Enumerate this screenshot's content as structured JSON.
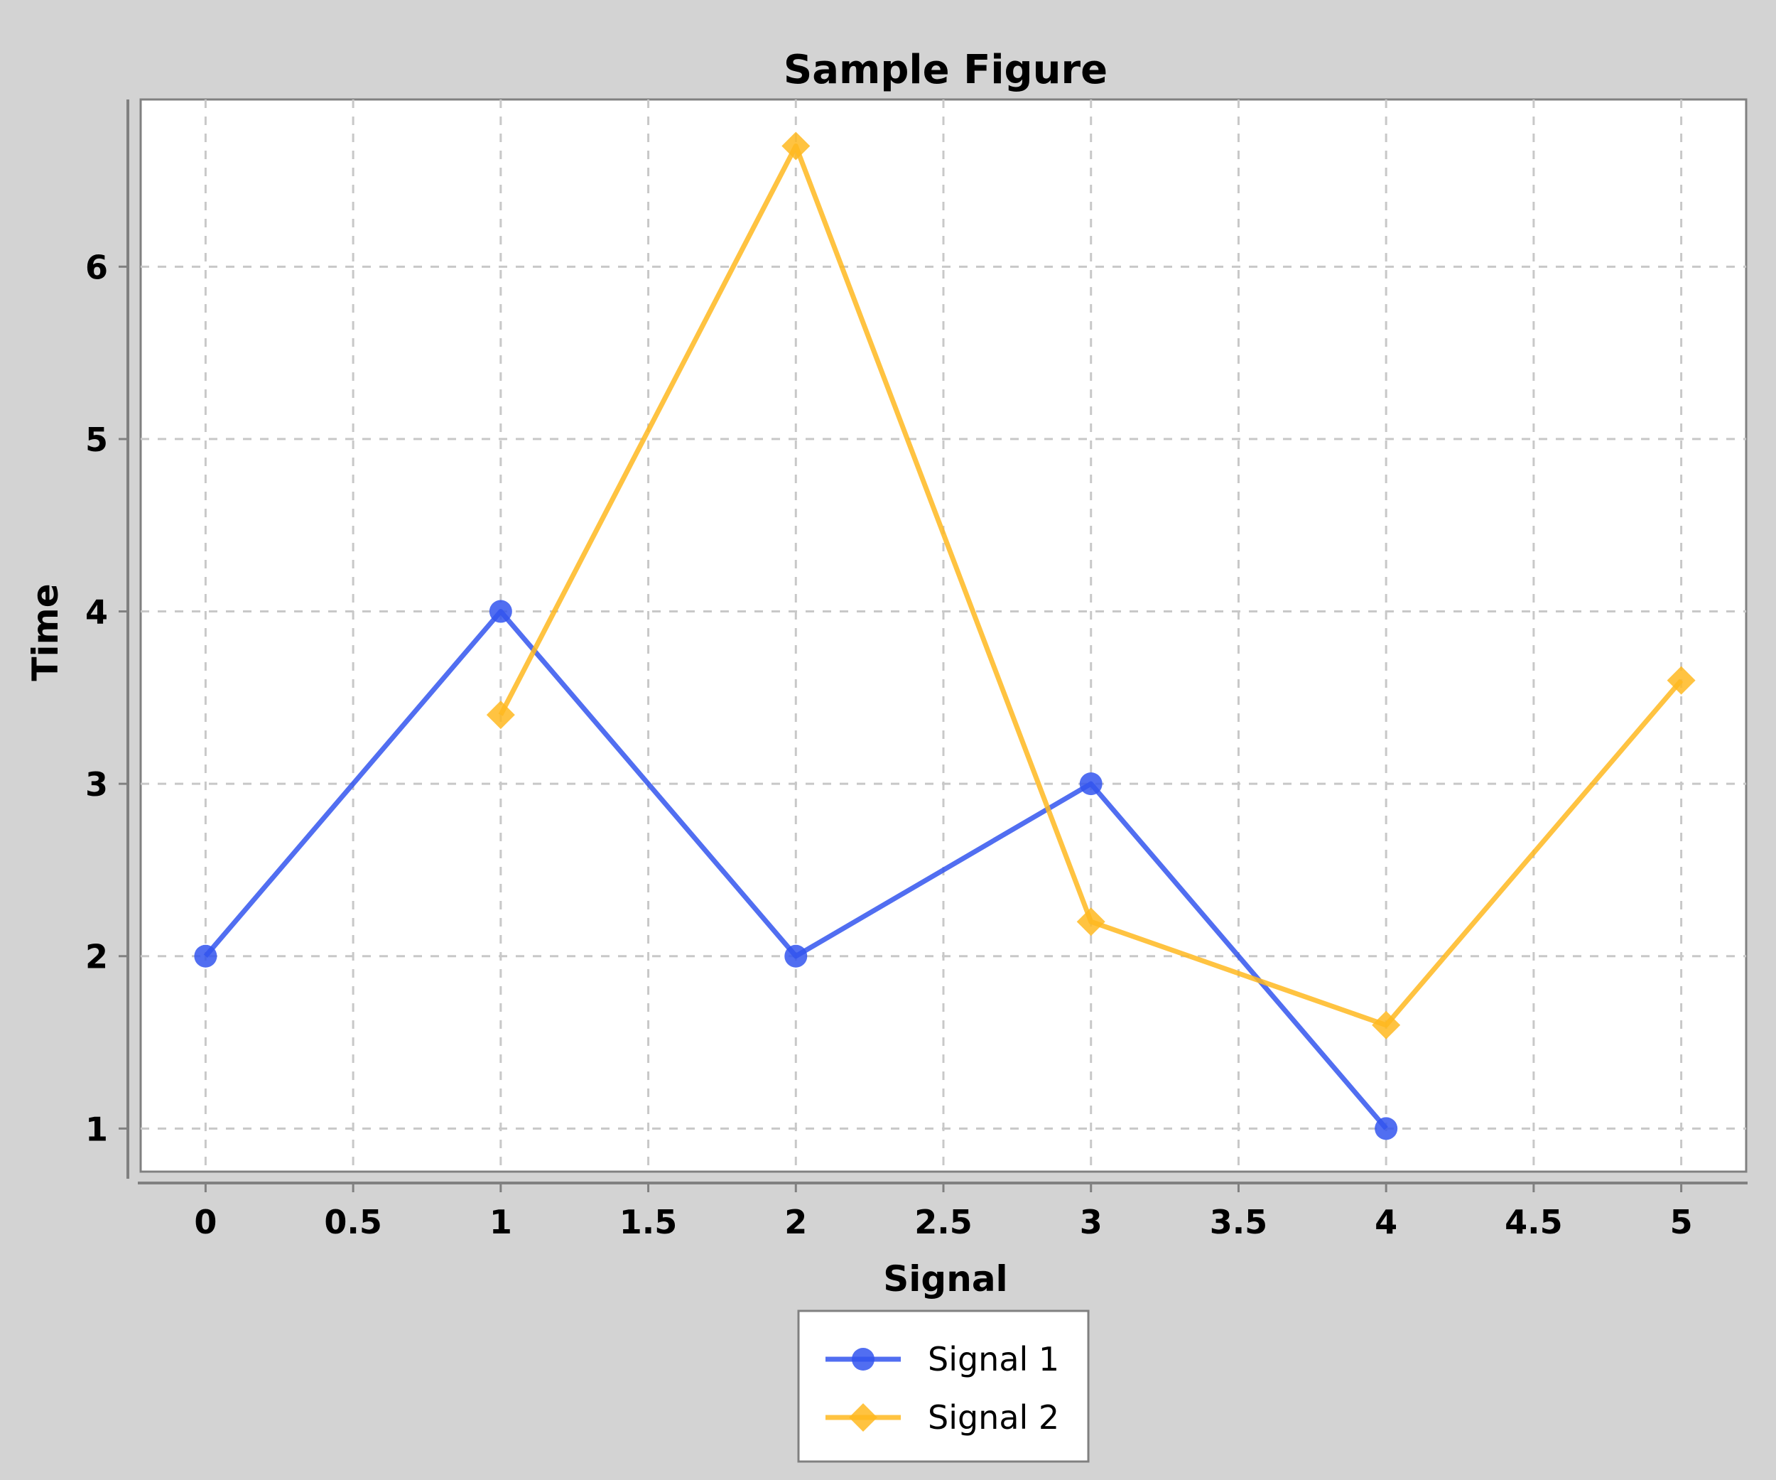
{
  "chart_data": {
    "type": "line",
    "title": "Sample Figure",
    "xlabel": "Signal",
    "ylabel": "Time",
    "xlim": [
      -0.22,
      5.22
    ],
    "ylim": [
      0.75,
      6.97
    ],
    "xticks": [
      0,
      0.5,
      1,
      1.5,
      2,
      2.5,
      3,
      3.5,
      4,
      4.5,
      5
    ],
    "xtick_labels": [
      "0",
      "0.5",
      "1",
      "1.5",
      "2",
      "2.5",
      "3",
      "3.5",
      "4",
      "4.5",
      "5"
    ],
    "yticks": [
      1,
      2,
      3,
      4,
      5,
      6
    ],
    "ytick_labels": [
      "1",
      "2",
      "3",
      "4",
      "5",
      "6"
    ],
    "grid": true,
    "legend_position": "bottom-center",
    "series": [
      {
        "name": "Signal 1",
        "color": "#3355ee",
        "marker": "circle",
        "x": [
          0,
          1,
          2,
          3,
          4
        ],
        "y": [
          2,
          4,
          2,
          3,
          1
        ]
      },
      {
        "name": "Signal 2",
        "color": "#ffb820",
        "marker": "diamond",
        "x": [
          1,
          2,
          3,
          4,
          5
        ],
        "y": [
          3.4,
          6.7,
          2.2,
          1.6,
          3.6
        ]
      }
    ]
  }
}
